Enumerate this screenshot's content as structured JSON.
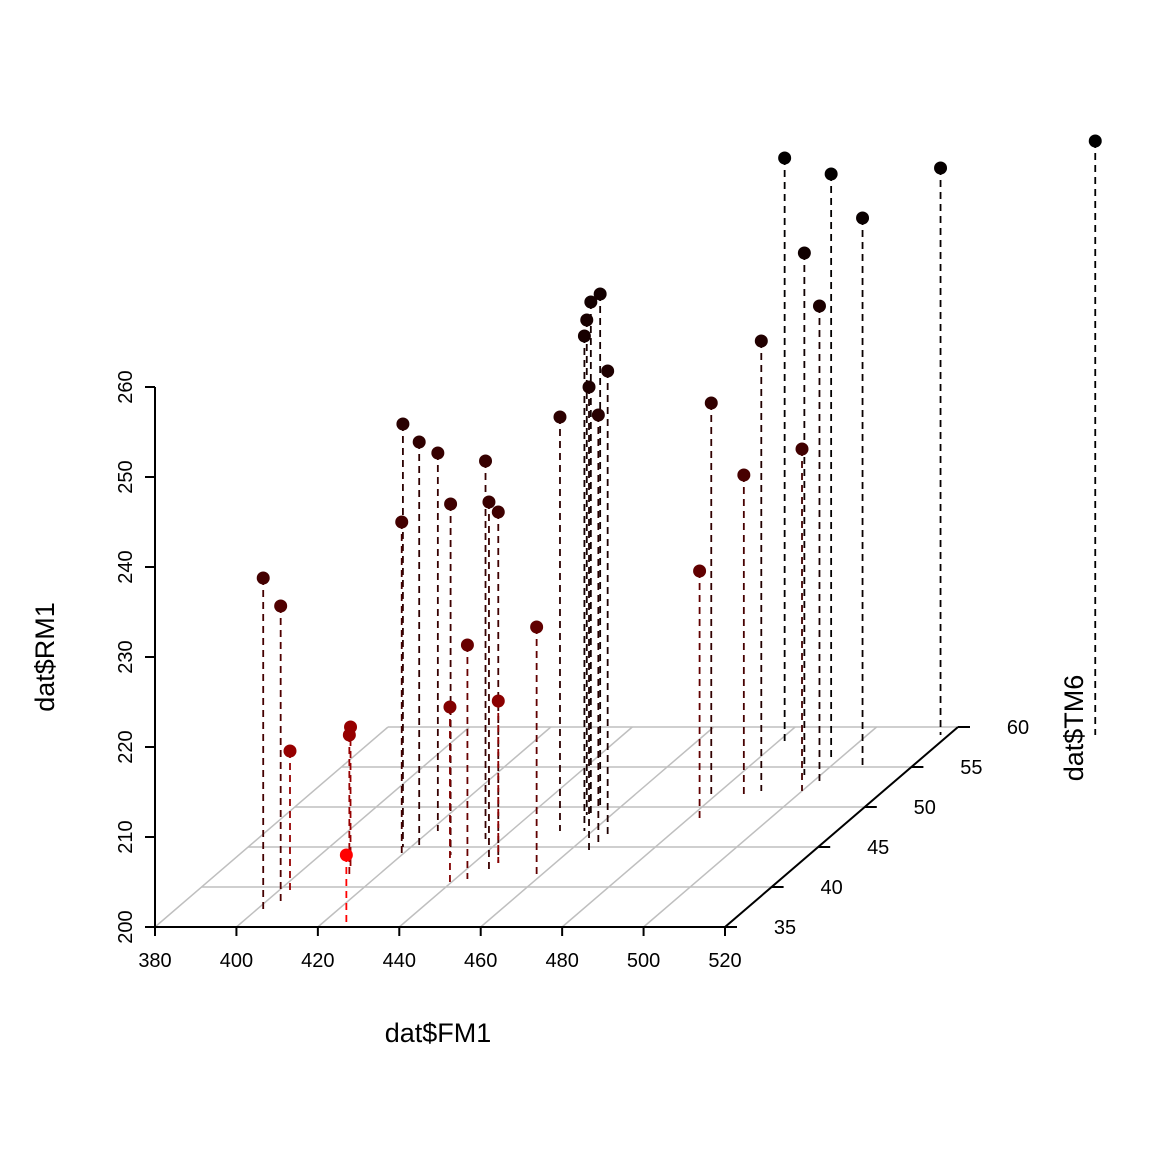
{
  "chart_data": {
    "type": "scatter3d",
    "title": "",
    "xlabel": "dat$FM1",
    "ylabel": "dat$TM6",
    "zlabel": "dat$RM1",
    "xlim": [
      380,
      520
    ],
    "ylim": [
      35,
      60
    ],
    "zlim": [
      200,
      260
    ],
    "x_ticks": [
      "380",
      "400",
      "420",
      "440",
      "460",
      "480",
      "500",
      "520"
    ],
    "y_ticks": [
      "35",
      "40",
      "45",
      "50",
      "55",
      "60"
    ],
    "z_ticks": [
      "200",
      "210",
      "220",
      "230",
      "240",
      "250",
      "260"
    ],
    "grid": true,
    "drop_lines": true,
    "color_gradient": [
      "#ff0000",
      "#000000"
    ],
    "points": [
      {
        "x": 402,
        "y": 37,
        "z": 237
      },
      {
        "x": 404,
        "y": 38,
        "z": 233
      },
      {
        "x": 404,
        "y": 39,
        "z": 216
      },
      {
        "x": 422,
        "y": 45,
        "z": 245
      },
      {
        "x": 420,
        "y": 44,
        "z": 237
      },
      {
        "x": 422,
        "y": 47,
        "z": 242
      },
      {
        "x": 412,
        "y": 42,
        "z": 216
      },
      {
        "x": 414,
        "y": 41,
        "z": 216
      },
      {
        "x": 418,
        "y": 45,
        "z": 247
      },
      {
        "x": 432,
        "y": 44,
        "z": 239
      },
      {
        "x": 436,
        "y": 46,
        "z": 242
      },
      {
        "x": 443,
        "y": 41,
        "z": 226
      },
      {
        "x": 441,
        "y": 40,
        "z": 220
      },
      {
        "x": 446,
        "y": 43,
        "z": 239
      },
      {
        "x": 446,
        "y": 42,
        "z": 241
      },
      {
        "x": 446,
        "y": 43,
        "z": 218
      },
      {
        "x": 427,
        "y": 35,
        "z": 208
      },
      {
        "x": 452,
        "y": 47,
        "z": 246
      },
      {
        "x": 454,
        "y": 49,
        "z": 255
      },
      {
        "x": 455,
        "y": 49,
        "z": 257
      },
      {
        "x": 455,
        "y": 50,
        "z": 257
      },
      {
        "x": 458,
        "y": 47,
        "z": 255
      },
      {
        "x": 460,
        "y": 41,
        "z": 228
      },
      {
        "x": 466,
        "y": 46,
        "z": 252
      },
      {
        "x": 466,
        "y": 45,
        "z": 248
      },
      {
        "x": 466,
        "y": 44,
        "z": 252
      },
      {
        "x": 480,
        "y": 51,
        "z": 244
      },
      {
        "x": 488,
        "y": 51,
        "z": 236
      },
      {
        "x": 484,
        "y": 48,
        "z": 228
      },
      {
        "x": 490,
        "y": 52,
        "z": 250
      },
      {
        "x": 500,
        "y": 52,
        "z": 238
      },
      {
        "x": 482,
        "y": 58,
        "z": 265
      },
      {
        "x": 496,
        "y": 54,
        "z": 258
      },
      {
        "x": 498,
        "y": 56,
        "z": 265
      },
      {
        "x": 502,
        "y": 53,
        "z": 253
      },
      {
        "x": 508,
        "y": 55,
        "z": 261
      },
      {
        "x": 518,
        "y": 59,
        "z": 263
      },
      {
        "x": 556,
        "y": 59,
        "z": 266
      }
    ]
  }
}
